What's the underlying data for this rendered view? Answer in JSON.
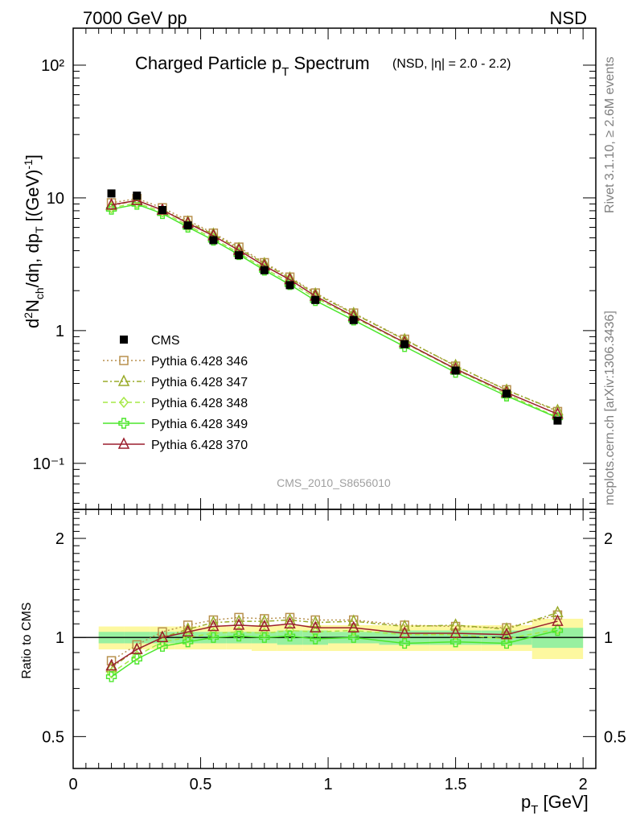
{
  "header": {
    "left": "7000 GeV pp",
    "right": "NSD"
  },
  "title": {
    "main": "Charged Particle p",
    "main_sub": "T",
    "main_tail": " Spectrum",
    "small": "(NSD, |η| = 2.0 - 2.2)"
  },
  "side": {
    "rivet": "Rivet 3.1.10, ≥ 2.6M events",
    "mcplots": "mcplots.cern.ch [arXiv:1306.3436]"
  },
  "analysis_tag": "CMS_2010_S8656010",
  "main_ylabel": "d²N_ch/dη, dp_T [(GeV)⁻¹]",
  "ratio_ylabel": "Ratio to CMS",
  "xlabel": "p_T [GeV]",
  "ticks": {
    "main_y": [
      "10⁻¹",
      "1",
      "10",
      "10²"
    ],
    "ratio_y": [
      "0.5",
      "1",
      "2"
    ],
    "x": [
      "0",
      "0.5",
      "1",
      "1.5",
      "2"
    ]
  },
  "legend": [
    {
      "label": "CMS",
      "color": "#000000",
      "marker": "square-filled",
      "line": "none"
    },
    {
      "label": "Pythia 6.428 346",
      "color": "#b8914e",
      "marker": "square-open",
      "line": "dotted"
    },
    {
      "label": "Pythia 6.428 347",
      "color": "#9aab2a",
      "marker": "triangle-open",
      "line": "dashdot"
    },
    {
      "label": "Pythia 6.428 348",
      "color": "#a6e846",
      "marker": "diamond-open",
      "line": "dashed"
    },
    {
      "label": "Pythia 6.428 349",
      "color": "#4ce62c",
      "marker": "cross-open",
      "line": "solid"
    },
    {
      "label": "Pythia 6.428 370",
      "color": "#9b1f2e",
      "marker": "triangle-open",
      "line": "solid"
    }
  ],
  "chart_data": {
    "type": "line",
    "x_scale": "linear",
    "xlim": [
      0,
      2.05
    ],
    "main_y_scale": "log",
    "main_ylim": [
      0.045,
      190
    ],
    "ratio_y_scale": "log",
    "ratio_ylim": [
      0.4,
      2.45
    ],
    "x": [
      0.15,
      0.25,
      0.35,
      0.45,
      0.55,
      0.65,
      0.75,
      0.85,
      0.95,
      1.1,
      1.3,
      1.5,
      1.7,
      1.9
    ],
    "bins": [
      [
        0.1,
        0.2
      ],
      [
        0.2,
        0.3
      ],
      [
        0.3,
        0.4
      ],
      [
        0.4,
        0.5
      ],
      [
        0.5,
        0.6
      ],
      [
        0.6,
        0.7
      ],
      [
        0.7,
        0.8
      ],
      [
        0.8,
        0.9
      ],
      [
        0.9,
        1.0
      ],
      [
        1.0,
        1.2
      ],
      [
        1.2,
        1.4
      ],
      [
        1.4,
        1.6
      ],
      [
        1.6,
        1.8
      ],
      [
        1.8,
        2.0
      ]
    ],
    "cms": [
      10.8,
      10.4,
      8.1,
      6.2,
      4.8,
      3.7,
      2.85,
      2.2,
      1.7,
      1.2,
      0.79,
      0.5,
      0.335,
      0.21
    ],
    "band_inner": [
      0.04,
      0.04,
      0.04,
      0.04,
      0.04,
      0.04,
      0.04,
      0.05,
      0.05,
      0.04,
      0.05,
      0.05,
      0.05,
      0.07
    ],
    "band_outer": [
      0.08,
      0.08,
      0.08,
      0.08,
      0.08,
      0.08,
      0.09,
      0.09,
      0.09,
      0.09,
      0.09,
      0.09,
      0.09,
      0.14
    ],
    "series": [
      {
        "name": "Pythia 6.428 346",
        "ratio": [
          0.85,
          0.95,
          1.04,
          1.09,
          1.13,
          1.15,
          1.14,
          1.15,
          1.13,
          1.13,
          1.09,
          1.08,
          1.07,
          1.17
        ]
      },
      {
        "name": "Pythia 6.428 347",
        "ratio": [
          0.81,
          0.92,
          1.0,
          1.06,
          1.11,
          1.12,
          1.12,
          1.13,
          1.11,
          1.12,
          1.08,
          1.09,
          1.06,
          1.19
        ]
      },
      {
        "name": "Pythia 6.428 348",
        "ratio": [
          0.78,
          0.88,
          0.97,
          1.0,
          1.03,
          1.04,
          1.03,
          1.05,
          1.04,
          1.05,
          1.02,
          1.02,
          0.99,
          1.06
        ]
      },
      {
        "name": "Pythia 6.428 349",
        "ratio": [
          0.76,
          0.86,
          0.94,
          0.97,
          1.0,
          1.01,
          1.0,
          1.01,
          0.99,
          1.0,
          0.96,
          0.97,
          0.96,
          1.05
        ]
      },
      {
        "name": "Pythia 6.428 370",
        "ratio": [
          0.82,
          0.92,
          1.0,
          1.04,
          1.08,
          1.09,
          1.08,
          1.1,
          1.07,
          1.07,
          1.03,
          1.03,
          1.02,
          1.12
        ]
      }
    ]
  }
}
